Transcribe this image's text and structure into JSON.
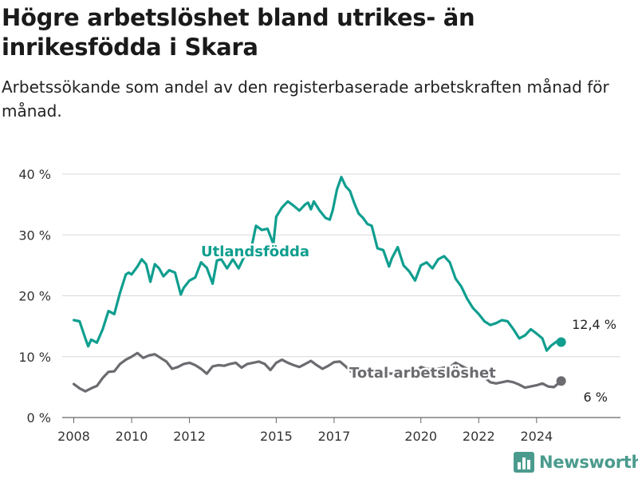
{
  "title": "Högre arbetslöshet bland utrikes- än inrikesfödda i Skara",
  "subtitle": "Arbetssökande som andel av den registerbaserade arbetskraften månad för månad.",
  "brand": "Newsworthy",
  "colors": {
    "foreign": "#0f9e8f",
    "total": "#6b6b70",
    "grid": "#d9d9d9"
  },
  "chart_data": {
    "type": "line",
    "ylim": [
      0,
      40
    ],
    "yticks": [
      0,
      10,
      20,
      30,
      40
    ],
    "ytick_labels": [
      "0 %",
      "10 %",
      "20 %",
      "30 %",
      "40 %"
    ],
    "xlim": [
      2007.6,
      2026.9
    ],
    "xticks": [
      2008,
      2010,
      2012,
      2015,
      2017,
      2020,
      2022,
      2024
    ],
    "xtick_labels": [
      "2008",
      "2010",
      "2012",
      "2015",
      "2017",
      "2020",
      "2022",
      "2024"
    ],
    "series": [
      {
        "name": "Utlandsfödda",
        "key": "foreign",
        "end_label": "12,4 %",
        "x": [
          2008.0,
          2008.2,
          2008.4,
          2008.5,
          2008.6,
          2008.8,
          2009.0,
          2009.2,
          2009.4,
          2009.6,
          2009.8,
          2009.9,
          2010.0,
          2010.2,
          2010.35,
          2010.5,
          2010.65,
          2010.8,
          2010.95,
          2011.1,
          2011.3,
          2011.5,
          2011.7,
          2011.8,
          2012.0,
          2012.2,
          2012.4,
          2012.6,
          2012.8,
          2012.95,
          2013.1,
          2013.3,
          2013.5,
          2013.7,
          2013.9,
          2014.1,
          2014.3,
          2014.5,
          2014.7,
          2014.9,
          2015.0,
          2015.2,
          2015.4,
          2015.6,
          2015.8,
          2016.0,
          2016.1,
          2016.2,
          2016.3,
          2016.5,
          2016.7,
          2016.85,
          2016.95,
          2017.1,
          2017.25,
          2017.4,
          2017.55,
          2017.7,
          2017.85,
          2018.0,
          2018.15,
          2018.3,
          2018.5,
          2018.7,
          2018.9,
          2019.0,
          2019.2,
          2019.4,
          2019.6,
          2019.8,
          2020.0,
          2020.2,
          2020.4,
          2020.6,
          2020.8,
          2021.0,
          2021.2,
          2021.4,
          2021.6,
          2021.8,
          2022.0,
          2022.2,
          2022.4,
          2022.6,
          2022.8,
          2023.0,
          2023.2,
          2023.4,
          2023.6,
          2023.8,
          2024.0,
          2024.2,
          2024.35,
          2024.5,
          2024.7,
          2024.85
        ],
        "y": [
          16.0,
          15.8,
          13.0,
          11.7,
          12.8,
          12.3,
          14.5,
          17.5,
          17.0,
          20.5,
          23.5,
          23.8,
          23.5,
          24.8,
          26.0,
          25.2,
          22.3,
          25.2,
          24.5,
          23.2,
          24.2,
          23.8,
          20.2,
          21.3,
          22.5,
          23.0,
          25.5,
          24.6,
          22.0,
          25.8,
          26.0,
          24.5,
          26.0,
          24.5,
          26.5,
          27.0,
          31.5,
          30.8,
          31.0,
          28.5,
          33.0,
          34.5,
          35.5,
          34.8,
          34.0,
          35.0,
          35.3,
          34.2,
          35.5,
          34.0,
          32.8,
          32.5,
          34.0,
          37.5,
          39.5,
          38.0,
          37.2,
          35.2,
          33.5,
          32.8,
          31.8,
          31.5,
          27.8,
          27.5,
          24.8,
          26.2,
          28.0,
          25.0,
          24.0,
          22.5,
          25.0,
          25.5,
          24.5,
          26.0,
          26.5,
          25.5,
          22.8,
          21.5,
          19.5,
          18.0,
          17.0,
          15.8,
          15.2,
          15.5,
          16.0,
          15.8,
          14.5,
          13.0,
          13.5,
          14.5,
          13.8,
          13.0,
          11.0,
          11.8,
          12.5,
          12.4
        ]
      },
      {
        "name": "Total arbetslöshet",
        "key": "total",
        "end_label": "6 %",
        "x": [
          2008.0,
          2008.2,
          2008.4,
          2008.6,
          2008.8,
          2009.0,
          2009.2,
          2009.4,
          2009.6,
          2009.8,
          2010.0,
          2010.2,
          2010.4,
          2010.6,
          2010.8,
          2011.0,
          2011.2,
          2011.4,
          2011.6,
          2011.8,
          2012.0,
          2012.2,
          2012.4,
          2012.6,
          2012.8,
          2013.0,
          2013.2,
          2013.4,
          2013.6,
          2013.8,
          2014.0,
          2014.2,
          2014.4,
          2014.6,
          2014.8,
          2015.0,
          2015.2,
          2015.4,
          2015.6,
          2015.8,
          2016.0,
          2016.2,
          2016.4,
          2016.6,
          2016.8,
          2017.0,
          2017.2,
          2017.4,
          2017.6,
          2017.8,
          2018.0,
          2018.2,
          2018.4,
          2018.6,
          2018.8,
          2019.0,
          2019.2,
          2019.4,
          2019.6,
          2019.8,
          2020.0,
          2020.2,
          2020.4,
          2020.6,
          2020.8,
          2021.0,
          2021.2,
          2021.4,
          2021.6,
          2021.8,
          2022.0,
          2022.2,
          2022.4,
          2022.6,
          2022.8,
          2023.0,
          2023.2,
          2023.4,
          2023.6,
          2023.8,
          2024.0,
          2024.2,
          2024.4,
          2024.6,
          2024.85
        ],
        "y": [
          5.5,
          4.8,
          4.3,
          4.8,
          5.2,
          6.5,
          7.5,
          7.6,
          8.8,
          9.5,
          10.0,
          10.6,
          9.8,
          10.2,
          10.4,
          9.8,
          9.2,
          8.0,
          8.3,
          8.8,
          9.0,
          8.6,
          8.0,
          7.2,
          8.4,
          8.6,
          8.5,
          8.8,
          9.0,
          8.2,
          8.8,
          9.0,
          9.2,
          8.8,
          7.8,
          9.0,
          9.5,
          9.0,
          8.6,
          8.3,
          8.8,
          9.3,
          8.6,
          8.0,
          8.5,
          9.1,
          9.2,
          8.4,
          7.5,
          7.2,
          7.8,
          7.4,
          7.0,
          7.6,
          7.3,
          7.2,
          7.4,
          7.8,
          7.5,
          7.3,
          8.3,
          8.0,
          7.9,
          8.0,
          8.2,
          8.3,
          9.0,
          8.5,
          8.0,
          7.4,
          7.0,
          6.6,
          5.8,
          5.6,
          5.8,
          6.0,
          5.8,
          5.4,
          4.9,
          5.1,
          5.3,
          5.6,
          5.1,
          5.0,
          6.0
        ]
      }
    ]
  }
}
